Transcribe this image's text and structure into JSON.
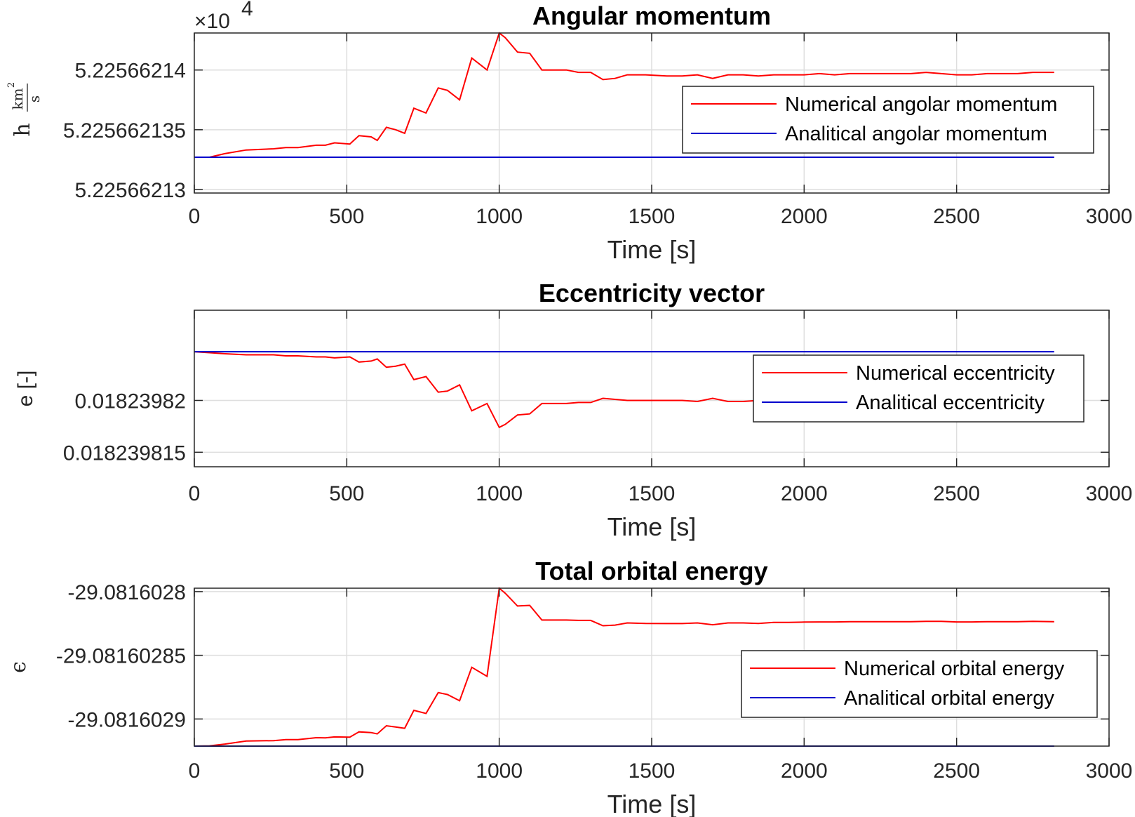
{
  "chart_data": [
    {
      "type": "line",
      "title": "Angular momentum",
      "xlabel": "Time [s]",
      "ylabel_symbol": "h",
      "ylabel_unit_num": "km",
      "ylabel_unit_num_exp": "2",
      "ylabel_unit_den": "s",
      "y_exponent_base": "×10",
      "y_exponent_power": "4",
      "xlim": [
        0,
        3000
      ],
      "ylim": [
        5.2256621297,
        5.2256621431
      ],
      "xticks": [
        0,
        500,
        1000,
        1500,
        2000,
        2500,
        3000
      ],
      "yticks": [
        5.22566213,
        5.225662135,
        5.22566214
      ],
      "ytick_labels": [
        "5.22566213",
        "5.225662135",
        "5.22566214"
      ],
      "grid": true,
      "legend_position": "right",
      "colors": {
        "numerical": "#ff0000",
        "analytical": "#0000cc"
      },
      "series": [
        {
          "name": "Numerical angolar momentum",
          "x": [
            0,
            50,
            100,
            170,
            260,
            300,
            340,
            400,
            430,
            460,
            510,
            540,
            580,
            600,
            630,
            660,
            690,
            720,
            760,
            800,
            830,
            870,
            910,
            960,
            1000,
            1020,
            1060,
            1100,
            1140,
            1170,
            1220,
            1260,
            1300,
            1340,
            1380,
            1420,
            1480,
            1550,
            1600,
            1650,
            1700,
            1750,
            1800,
            1850,
            1900,
            1950,
            2000,
            2050,
            2100,
            2150,
            2200,
            2250,
            2300,
            2350,
            2400,
            2450,
            2500,
            2550,
            2600,
            2650,
            2700,
            2750,
            2820
          ],
          "y": [
            5.2256621327,
            5.2256621327,
            5.225662133,
            5.2256621333,
            5.2256621334,
            5.2256621335,
            5.2256621335,
            5.2256621337,
            5.2256621337,
            5.2256621339,
            5.2256621338,
            5.2256621345,
            5.2256621344,
            5.2256621341,
            5.2256621352,
            5.225662135,
            5.2256621347,
            5.2256621368,
            5.2256621364,
            5.2256621385,
            5.2256621383,
            5.2256621375,
            5.225662141,
            5.22566214,
            5.2256621431,
            5.2256621427,
            5.2256621415,
            5.2256621414,
            5.22566214,
            5.22566214,
            5.22566214,
            5.2256621398,
            5.2256621398,
            5.2256621392,
            5.2256621393,
            5.2256621396,
            5.2256621396,
            5.2256621395,
            5.2256621395,
            5.2256621396,
            5.2256621393,
            5.2256621396,
            5.2256621396,
            5.2256621395,
            5.2256621396,
            5.2256621396,
            5.2256621396,
            5.2256621397,
            5.2256621396,
            5.2256621397,
            5.2256621397,
            5.2256621397,
            5.2256621397,
            5.2256621397,
            5.2256621398,
            5.2256621397,
            5.2256621396,
            5.2256621396,
            5.2256621397,
            5.2256621397,
            5.2256621397,
            5.2256621398,
            5.2256621398
          ]
        },
        {
          "name": "Analitical angolar momentum",
          "x": [
            0,
            2820
          ],
          "y": [
            5.2256621327,
            5.2256621327
          ]
        }
      ]
    },
    {
      "type": "line",
      "title": "Eccentricity vector",
      "xlabel": "Time [s]",
      "ylabel": "e [-]",
      "xlim": [
        0,
        3000
      ],
      "ylim": [
        0.0182398136,
        0.0182398287
      ],
      "xticks": [
        0,
        500,
        1000,
        1500,
        2000,
        2500,
        3000
      ],
      "yticks": [
        0.018239815,
        0.01823982
      ],
      "ytick_labels": [
        "0.018239815",
        "0.01823982"
      ],
      "grid": true,
      "legend_position": "right",
      "colors": {
        "numerical": "#ff0000",
        "analytical": "#0000cc"
      },
      "series": [
        {
          "name": "Numerical eccentricity",
          "x": [
            0,
            50,
            100,
            170,
            260,
            300,
            340,
            400,
            430,
            460,
            510,
            540,
            580,
            600,
            630,
            660,
            690,
            720,
            760,
            800,
            830,
            870,
            910,
            960,
            1000,
            1020,
            1060,
            1100,
            1140,
            1170,
            1220,
            1260,
            1300,
            1340,
            1380,
            1420,
            1480,
            1550,
            1600,
            1650,
            1700,
            1750,
            1800,
            1850,
            1900,
            1950,
            2000,
            2050,
            2100,
            2150,
            2200,
            2250,
            2300,
            2350,
            2400,
            2450,
            2500,
            2550,
            2600,
            2650,
            2700,
            2750,
            2820
          ],
          "y": [
            0.0182398247,
            0.0182398246,
            0.0182398245,
            0.0182398244,
            0.0182398244,
            0.0182398243,
            0.0182398243,
            0.0182398242,
            0.0182398242,
            0.0182398241,
            0.0182398242,
            0.0182398237,
            0.0182398238,
            0.018239824,
            0.0182398232,
            0.0182398233,
            0.0182398235,
            0.018239822,
            0.0182398223,
            0.0182398208,
            0.0182398209,
            0.0182398215,
            0.018239819,
            0.0182398197,
            0.0182398174,
            0.0182398177,
            0.0182398186,
            0.0182398187,
            0.0182398197,
            0.0182398197,
            0.0182398197,
            0.0182398198,
            0.0182398198,
            0.0182398202,
            0.0182398201,
            0.01823982,
            0.01823982,
            0.01823982,
            0.01823982,
            0.0182398199,
            0.0182398202,
            0.0182398199,
            0.0182398199,
            0.01823982,
            0.0182398199,
            0.0182398199,
            0.0182398199,
            0.0182398198,
            0.0182398199,
            0.0182398198,
            0.0182398198,
            0.0182398198,
            0.0182398198,
            0.0182398198,
            0.0182398198,
            0.0182398198,
            0.0182398199,
            0.0182398199,
            0.0182398198,
            0.0182398198,
            0.0182398198,
            0.0182398198,
            0.0182398198
          ]
        },
        {
          "name": "Analitical eccentricity",
          "x": [
            0,
            2820
          ],
          "y": [
            0.0182398247,
            0.0182398247
          ]
        }
      ]
    },
    {
      "type": "line",
      "title": "Total orbital energy",
      "xlabel": "Time [s]",
      "ylabel": "ϵ",
      "xlim": [
        0,
        3000
      ],
      "ylim": [
        -29.0816029213,
        -29.0816027973
      ],
      "xticks": [
        0,
        500,
        1000,
        1500,
        2000,
        2500,
        3000
      ],
      "yticks": [
        -29.0816029,
        -29.08160285,
        -29.0816028
      ],
      "ytick_labels": [
        "-29.0816029",
        "-29.08160285",
        "-29.0816028"
      ],
      "grid": true,
      "legend_position": "right",
      "colors": {
        "numerical": "#ff0000",
        "analytical": "#0000cc"
      },
      "series": [
        {
          "name": "Numerical orbital energy",
          "x": [
            0,
            50,
            100,
            170,
            260,
            300,
            340,
            400,
            430,
            460,
            510,
            540,
            580,
            600,
            630,
            660,
            690,
            720,
            760,
            800,
            830,
            870,
            910,
            960,
            1000,
            1020,
            1060,
            1100,
            1140,
            1170,
            1220,
            1260,
            1300,
            1340,
            1380,
            1420,
            1480,
            1550,
            1600,
            1650,
            1700,
            1750,
            1800,
            1850,
            1900,
            1950,
            2000,
            2050,
            2100,
            2150,
            2200,
            2250,
            2300,
            2350,
            2400,
            2450,
            2500,
            2550,
            2600,
            2650,
            2700,
            2750,
            2820
          ],
          "y": [
            -29.0816029213,
            -29.0816029211,
            -29.0816029197,
            -29.0816029173,
            -29.081602917,
            -29.0816029162,
            -29.0816029162,
            -29.0816029147,
            -29.0816029148,
            -29.0816029141,
            -29.0816029143,
            -29.0816029101,
            -29.0816029107,
            -29.0816029117,
            -29.0816029053,
            -29.0816029063,
            -29.0816029073,
            -29.0816028932,
            -29.0816028957,
            -29.0816028793,
            -29.0816028808,
            -29.0816028857,
            -29.0816028594,
            -29.0816028665,
            -29.0816027973,
            -29.0816028013,
            -29.0816028113,
            -29.0816028108,
            -29.0816028223,
            -29.0816028223,
            -29.0816028223,
            -29.0816028226,
            -29.0816028226,
            -29.0816028268,
            -29.0816028263,
            -29.0816028246,
            -29.081602825,
            -29.0816028251,
            -29.0816028251,
            -29.0816028246,
            -29.081602826,
            -29.0816028246,
            -29.0816028246,
            -29.081602825,
            -29.0816028242,
            -29.0816028242,
            -29.0816028239,
            -29.0816028238,
            -29.0816028238,
            -29.0816028236,
            -29.0816028236,
            -29.0816028236,
            -29.0816028236,
            -29.0816028236,
            -29.0816028233,
            -29.0816028233,
            -29.0816028238,
            -29.0816028238,
            -29.0816028236,
            -29.0816028236,
            -29.0816028236,
            -29.0816028233,
            -29.0816028236
          ]
        },
        {
          "name": "Analitical orbital energy",
          "x": [
            0,
            2820
          ],
          "y": [
            -29.0816029213,
            -29.0816029213
          ]
        }
      ]
    }
  ]
}
